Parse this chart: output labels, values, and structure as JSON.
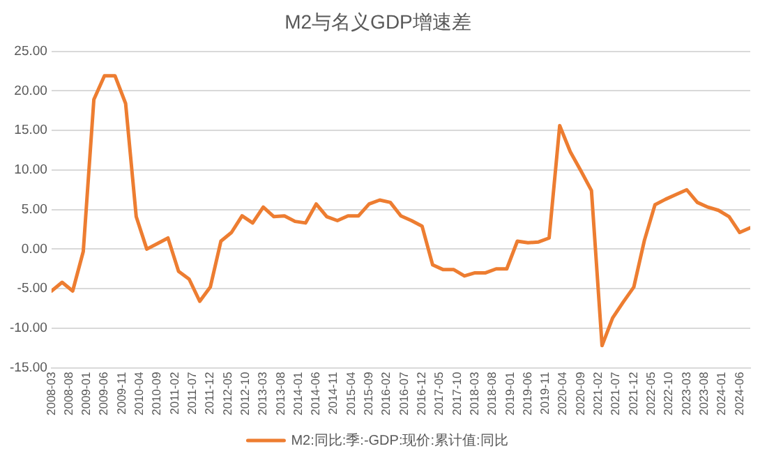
{
  "chart_data": {
    "type": "line",
    "title": "M2与名义GDP增速差",
    "x": [
      "2008-03",
      "2008-06",
      "2008-09",
      "2008-12",
      "2009-03",
      "2009-06",
      "2009-09",
      "2009-12",
      "2010-03",
      "2010-06",
      "2010-09",
      "2010-12",
      "2011-03",
      "2011-06",
      "2011-09",
      "2011-12",
      "2012-03",
      "2012-06",
      "2012-09",
      "2012-12",
      "2013-03",
      "2013-06",
      "2013-09",
      "2013-12",
      "2014-03",
      "2014-06",
      "2014-09",
      "2014-12",
      "2015-03",
      "2015-06",
      "2015-09",
      "2015-12",
      "2016-03",
      "2016-06",
      "2016-09",
      "2016-12",
      "2017-03",
      "2017-06",
      "2017-09",
      "2017-12",
      "2018-03",
      "2018-06",
      "2018-09",
      "2018-12",
      "2019-03",
      "2019-06",
      "2019-09",
      "2019-12",
      "2020-03",
      "2020-06",
      "2020-09",
      "2020-12",
      "2021-03",
      "2021-06",
      "2021-09",
      "2021-12",
      "2022-03",
      "2022-06",
      "2022-09",
      "2022-12",
      "2023-03",
      "2023-06",
      "2023-09",
      "2023-12",
      "2024-03",
      "2024-06",
      "2024-09"
    ],
    "series": [
      {
        "name": "M2:同比:季:-GDP:现价:累计值:同比",
        "color": "#ed7d31",
        "values": [
          -5.3,
          -4.2,
          -5.3,
          -0.3,
          18.9,
          21.9,
          21.9,
          18.4,
          4.1,
          0.0,
          0.7,
          1.4,
          -2.8,
          -3.8,
          -6.6,
          -4.8,
          1.0,
          2.1,
          4.2,
          3.3,
          5.3,
          4.1,
          4.2,
          3.5,
          3.3,
          5.7,
          4.1,
          3.6,
          4.2,
          4.2,
          5.7,
          6.2,
          5.9,
          4.2,
          3.6,
          2.9,
          -2.0,
          -2.6,
          -2.6,
          -3.4,
          -3.0,
          -3.0,
          -2.5,
          -2.5,
          1.0,
          0.8,
          0.9,
          1.4,
          15.6,
          12.3,
          9.9,
          7.4,
          -12.2,
          -8.7,
          -6.7,
          -4.8,
          1.1,
          5.6,
          6.3,
          6.9,
          7.5,
          5.9,
          5.3,
          4.9,
          4.1,
          2.1,
          2.7
        ]
      }
    ],
    "xlim": [
      "2008-03",
      "2024-09"
    ],
    "xticks": [
      "2008-03",
      "2008-08",
      "2009-01",
      "2009-06",
      "2009-11",
      "2010-04",
      "2010-09",
      "2011-02",
      "2011-07",
      "2011-12",
      "2012-05",
      "2012-10",
      "2013-03",
      "2013-08",
      "2014-01",
      "2014-06",
      "2014-11",
      "2015-04",
      "2015-09",
      "2016-02",
      "2016-07",
      "2016-12",
      "2017-05",
      "2017-10",
      "2018-03",
      "2018-08",
      "2019-01",
      "2019-06",
      "2019-11",
      "2020-04",
      "2020-09",
      "2021-02",
      "2021-07",
      "2021-12",
      "2022-05",
      "2022-10",
      "2023-03",
      "2023-08",
      "2024-01",
      "2024-06"
    ],
    "ylim": [
      -15,
      25
    ],
    "yticks": [
      {
        "value": -15,
        "label": "-15.00"
      },
      {
        "value": -10,
        "label": "-10.00"
      },
      {
        "value": -5,
        "label": "-5.00"
      },
      {
        "value": 0,
        "label": "0.00"
      },
      {
        "value": 5,
        "label": "5.00"
      },
      {
        "value": 10,
        "label": "10.00"
      },
      {
        "value": 15,
        "label": "15.00"
      },
      {
        "value": 20,
        "label": "20.00"
      },
      {
        "value": 25,
        "label": "25.00"
      }
    ],
    "grid": "y",
    "legend": "bottom",
    "marker": "none",
    "line_style": "solid"
  }
}
